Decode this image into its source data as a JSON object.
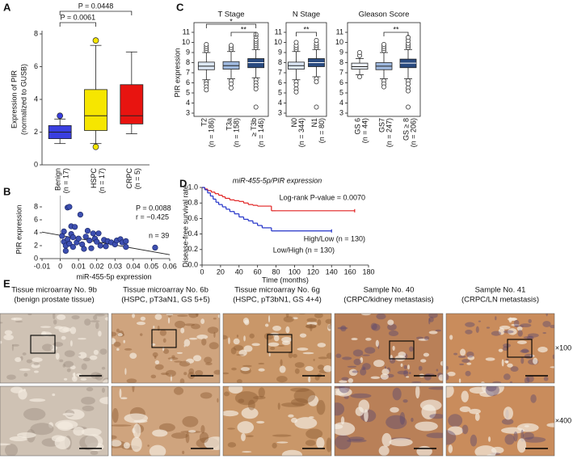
{
  "panel_labels": [
    "A",
    "B",
    "C",
    "D",
    "E"
  ],
  "chart_data": [
    {
      "type": "box",
      "y_label": [
        "Expression of PIR",
        "(normalized to GUSB)"
      ],
      "categories": [
        "Benign",
        "HSPC",
        "CRPC"
      ],
      "category_notes": [
        "(n = 17)",
        "(n = 17)",
        "(n = 5)"
      ],
      "colors": [
        "#3a3fe0",
        "#f6e600",
        "#e81410"
      ],
      "boxes": [
        {
          "whisker_low": 1.3,
          "q1": 1.6,
          "median": 2.0,
          "q3": 2.4,
          "whisker_high": 2.8,
          "outliers": [
            3.0
          ]
        },
        {
          "whisker_low": 1.3,
          "q1": 2.1,
          "median": 3.0,
          "q3": 4.6,
          "whisker_high": 7.3,
          "outliers": [
            7.6,
            1.1
          ]
        },
        {
          "whisker_low": 1.9,
          "q1": 2.5,
          "median": 3.0,
          "q3": 4.9,
          "whisker_high": 6.9,
          "outliers": []
        }
      ],
      "ylim": [
        0,
        8
      ],
      "yticks": [
        0,
        2,
        4,
        6,
        8
      ],
      "comparisons": [
        {
          "label": "P = 0.0061",
          "pair": [
            "Benign",
            "HSPC"
          ]
        },
        {
          "label": "P = 0.0448",
          "pair": [
            "Benign",
            "CRPC"
          ]
        }
      ]
    },
    {
      "type": "scatter",
      "y_label": "PIR expression",
      "x_label": "miR-455-5p expression",
      "x": [
        0.001,
        0.002,
        0.002,
        0.003,
        0.003,
        0.004,
        0.004,
        0.005,
        0.005,
        0.006,
        0.006,
        0.007,
        0.007,
        0.008,
        0.009,
        0.01,
        0.011,
        0.012,
        0.013,
        0.014,
        0.015,
        0.016,
        0.017,
        0.018,
        0.019,
        0.02,
        0.021,
        0.022,
        0.024,
        0.025,
        0.026,
        0.028,
        0.03,
        0.031,
        0.033,
        0.034,
        0.036,
        0.036,
        0.052
      ],
      "values": [
        3.5,
        4.2,
        2.6,
        2.0,
        1.2,
        7.9,
        3.0,
        8.0,
        2.3,
        5.0,
        3.8,
        3.3,
        1.8,
        4.9,
        2.5,
        3.1,
        6.8,
        2.2,
        1.5,
        3.4,
        4.3,
        2.8,
        1.6,
        3.9,
        3.1,
        2.6,
        3.9,
        2.0,
        2.9,
        1.9,
        2.7,
        2.5,
        2.2,
        2.8,
        3.0,
        2.5,
        2.7,
        1.8,
        1.7
      ],
      "color": "#3d4fb0",
      "trend_line": {
        "x": [
          -0.01,
          0.06
        ],
        "values": [
          4.1,
          0.6
        ]
      },
      "xlim": [
        -0.01,
        0.06
      ],
      "xticks": [
        -0.01,
        0,
        0.01,
        0.02,
        0.03,
        0.04,
        0.05,
        0.06
      ],
      "ylim": [
        0,
        9
      ],
      "yticks": [
        0,
        2,
        4,
        6,
        8
      ],
      "annotations": [
        "P = 0.0088",
        "r = −0.425",
        "n = 39"
      ]
    },
    {
      "type": "box",
      "title": "T Stage",
      "y_label": "PIR expression",
      "categories": [
        "T2",
        "T3a",
        "≥ T3b"
      ],
      "category_notes": [
        "(n = 186)",
        "(n = 158)",
        "(n = 146)"
      ],
      "colors": [
        "#dde8f6",
        "#9fb9df",
        "#2a4b80"
      ],
      "boxes": [
        {
          "whisker_low": 6.3,
          "q1": 7.3,
          "median": 7.65,
          "q3": 8.05,
          "whisker_high": 9.0,
          "outliers": [
            9.2,
            9.4,
            9.6,
            9.8,
            6.1,
            5.9,
            5.6,
            5.3
          ]
        },
        {
          "whisker_low": 6.4,
          "q1": 7.35,
          "median": 7.7,
          "q3": 8.1,
          "whisker_high": 9.1,
          "outliers": [
            9.3,
            9.5,
            9.7,
            6.2,
            5.9,
            5.5
          ]
        },
        {
          "whisker_low": 6.5,
          "q1": 7.5,
          "median": 8.0,
          "q3": 8.4,
          "whisker_high": 9.3,
          "outliers": [
            9.5,
            9.7,
            9.9,
            10.1,
            10.3,
            10.6,
            10.8,
            6.3,
            6.0,
            5.7,
            5.4,
            3.6
          ]
        }
      ],
      "ylim": [
        3,
        11
      ],
      "yticks": [
        3,
        4,
        5,
        6,
        7,
        8,
        9,
        10,
        11
      ],
      "comparisons": [
        {
          "label": "**",
          "pair": [
            "T3a",
            "≥ T3b"
          ]
        },
        {
          "label": "*",
          "pair": [
            "T2",
            "≥ T3b"
          ]
        }
      ]
    },
    {
      "type": "box",
      "title": "N Stage",
      "categories": [
        "N0",
        "N1"
      ],
      "category_notes": [
        "(n = 344)",
        "(n = 80)"
      ],
      "colors": [
        "#dde8f6",
        "#2a4b80"
      ],
      "boxes": [
        {
          "whisker_low": 6.3,
          "q1": 7.35,
          "median": 7.7,
          "q3": 8.05,
          "whisker_high": 9.1,
          "outliers": [
            9.3,
            9.5,
            9.7,
            10.0,
            6.1,
            5.8,
            5.4,
            5.1
          ]
        },
        {
          "whisker_low": 6.6,
          "q1": 7.6,
          "median": 8.0,
          "q3": 8.4,
          "whisker_high": 9.3,
          "outliers": [
            9.5,
            9.7,
            9.9,
            10.2,
            6.4,
            6.1,
            3.6
          ]
        }
      ],
      "ylim": [
        3,
        11
      ],
      "yticks": [
        3,
        4,
        5,
        6,
        7,
        8,
        9,
        10,
        11
      ],
      "comparisons": [
        {
          "label": "**",
          "pair": [
            "N0",
            "N1"
          ]
        }
      ]
    },
    {
      "type": "box",
      "title": "Gleason Score",
      "categories": [
        "GS 6",
        "GS7",
        "GS ≥ 8"
      ],
      "category_notes": [
        "(n = 44)",
        "(n = 247)",
        "(n = 206)"
      ],
      "colors": [
        "#eef3fa",
        "#9fb9df",
        "#2a4b80"
      ],
      "boxes": [
        {
          "whisker_low": 6.8,
          "q1": 7.35,
          "median": 7.6,
          "q3": 7.95,
          "whisker_high": 8.4,
          "outliers": [
            8.7,
            9.0,
            6.6
          ]
        },
        {
          "whisker_low": 6.4,
          "q1": 7.3,
          "median": 7.65,
          "q3": 8.0,
          "whisker_high": 9.0,
          "outliers": [
            9.2,
            9.4,
            9.6,
            9.8,
            6.2,
            5.9,
            5.6
          ]
        },
        {
          "whisker_low": 6.4,
          "q1": 7.5,
          "median": 7.95,
          "q3": 8.35,
          "whisker_high": 9.3,
          "outliers": [
            9.5,
            9.7,
            9.9,
            10.2,
            10.5,
            6.2,
            5.9,
            5.5,
            5.2,
            3.6
          ]
        }
      ],
      "ylim": [
        3,
        11
      ],
      "yticks": [
        3,
        4,
        5,
        6,
        7,
        8,
        9,
        10,
        11
      ],
      "comparisons": [
        {
          "label": "**",
          "pair": [
            "GS7",
            "GS ≥ 8"
          ]
        }
      ]
    },
    {
      "type": "line",
      "step": true,
      "title": "miR-455-5p/PIR expression",
      "y_label": "Disease-free survival rate",
      "x_label": "Time (months)",
      "annotation": "Log-rank P-value = 0.0070",
      "series": [
        {
          "name": "High/Low (n = 130)",
          "color": "#e02020",
          "x": [
            0,
            3,
            6,
            10,
            14,
            18,
            22,
            25,
            30,
            35,
            40,
            45,
            50,
            55,
            60,
            75,
            80,
            165
          ],
          "values": [
            1,
            0.98,
            0.96,
            0.94,
            0.92,
            0.9,
            0.88,
            0.86,
            0.84,
            0.83,
            0.82,
            0.8,
            0.78,
            0.77,
            0.76,
            0.7,
            0.7,
            0.7
          ]
        },
        {
          "name": "Low/High (n = 130)",
          "color": "#2030c8",
          "x": [
            0,
            3,
            6,
            9,
            12,
            15,
            18,
            22,
            26,
            30,
            35,
            40,
            45,
            50,
            55,
            60,
            65,
            75,
            140
          ],
          "values": [
            1,
            0.97,
            0.93,
            0.89,
            0.85,
            0.81,
            0.78,
            0.75,
            0.72,
            0.69,
            0.66,
            0.62,
            0.59,
            0.57,
            0.54,
            0.51,
            0.48,
            0.44,
            0.44
          ]
        }
      ],
      "xlim": [
        0,
        180
      ],
      "xticks": [
        0,
        20,
        40,
        60,
        80,
        100,
        120,
        140,
        160,
        180
      ],
      "ylim": [
        0,
        1
      ],
      "yticks": [
        {
          "value": 0,
          "label": "0.0"
        },
        0.2,
        0.4,
        0.6,
        0.8,
        {
          "value": 1,
          "label": "1.0"
        }
      ]
    }
  ],
  "panel_e": {
    "columns": [
      {
        "title": "Tissue microarray No. 9b",
        "subtitle": "(benign prostate tissue)"
      },
      {
        "title": "Tissue microarray No. 6b",
        "subtitle": "(HSPC, pT3aN1, GS 5+5)"
      },
      {
        "title": "Tissue microarray No. 6g",
        "subtitle": "(HSPC, pT3bN1, GS 4+4)"
      },
      {
        "title": "Sample No. 40",
        "subtitle": "(CRPC/kidney metastasis)"
      },
      {
        "title": "Sample No. 41",
        "subtitle": "(CRPC/LN metastasis)"
      }
    ],
    "magnifications": [
      "×100",
      "×400"
    ]
  }
}
